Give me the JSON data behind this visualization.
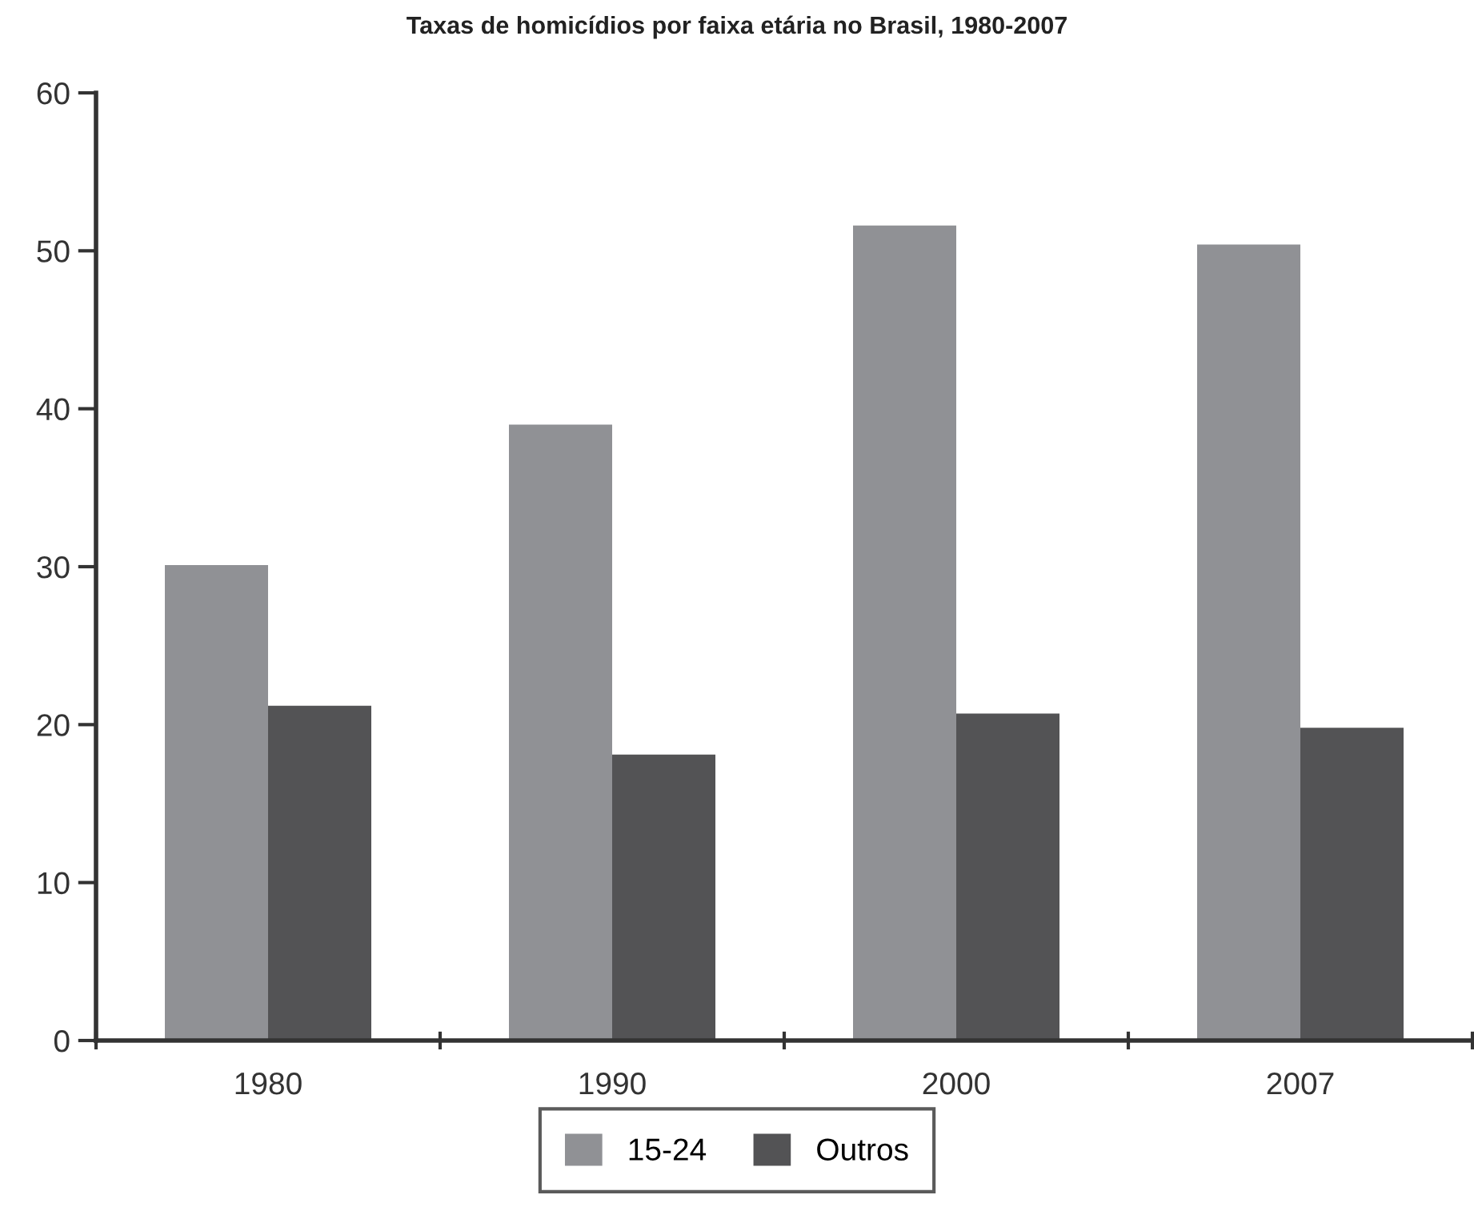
{
  "chart_data": {
    "type": "bar",
    "title": "Taxas de homicídios por faixa etária no Brasil, 1980-2007",
    "categories": [
      "1980",
      "1990",
      "2000",
      "2007"
    ],
    "series": [
      {
        "name": "15-24",
        "color": "#909195",
        "values": [
          30.1,
          39.0,
          51.6,
          50.4
        ]
      },
      {
        "name": "Outros",
        "color": "#535355",
        "values": [
          21.2,
          18.1,
          20.7,
          19.8
        ]
      }
    ],
    "ylim": [
      0,
      60
    ],
    "yticks": [
      0,
      10,
      20,
      30,
      40,
      50,
      60
    ],
    "grid": false,
    "legend": "bottom"
  }
}
